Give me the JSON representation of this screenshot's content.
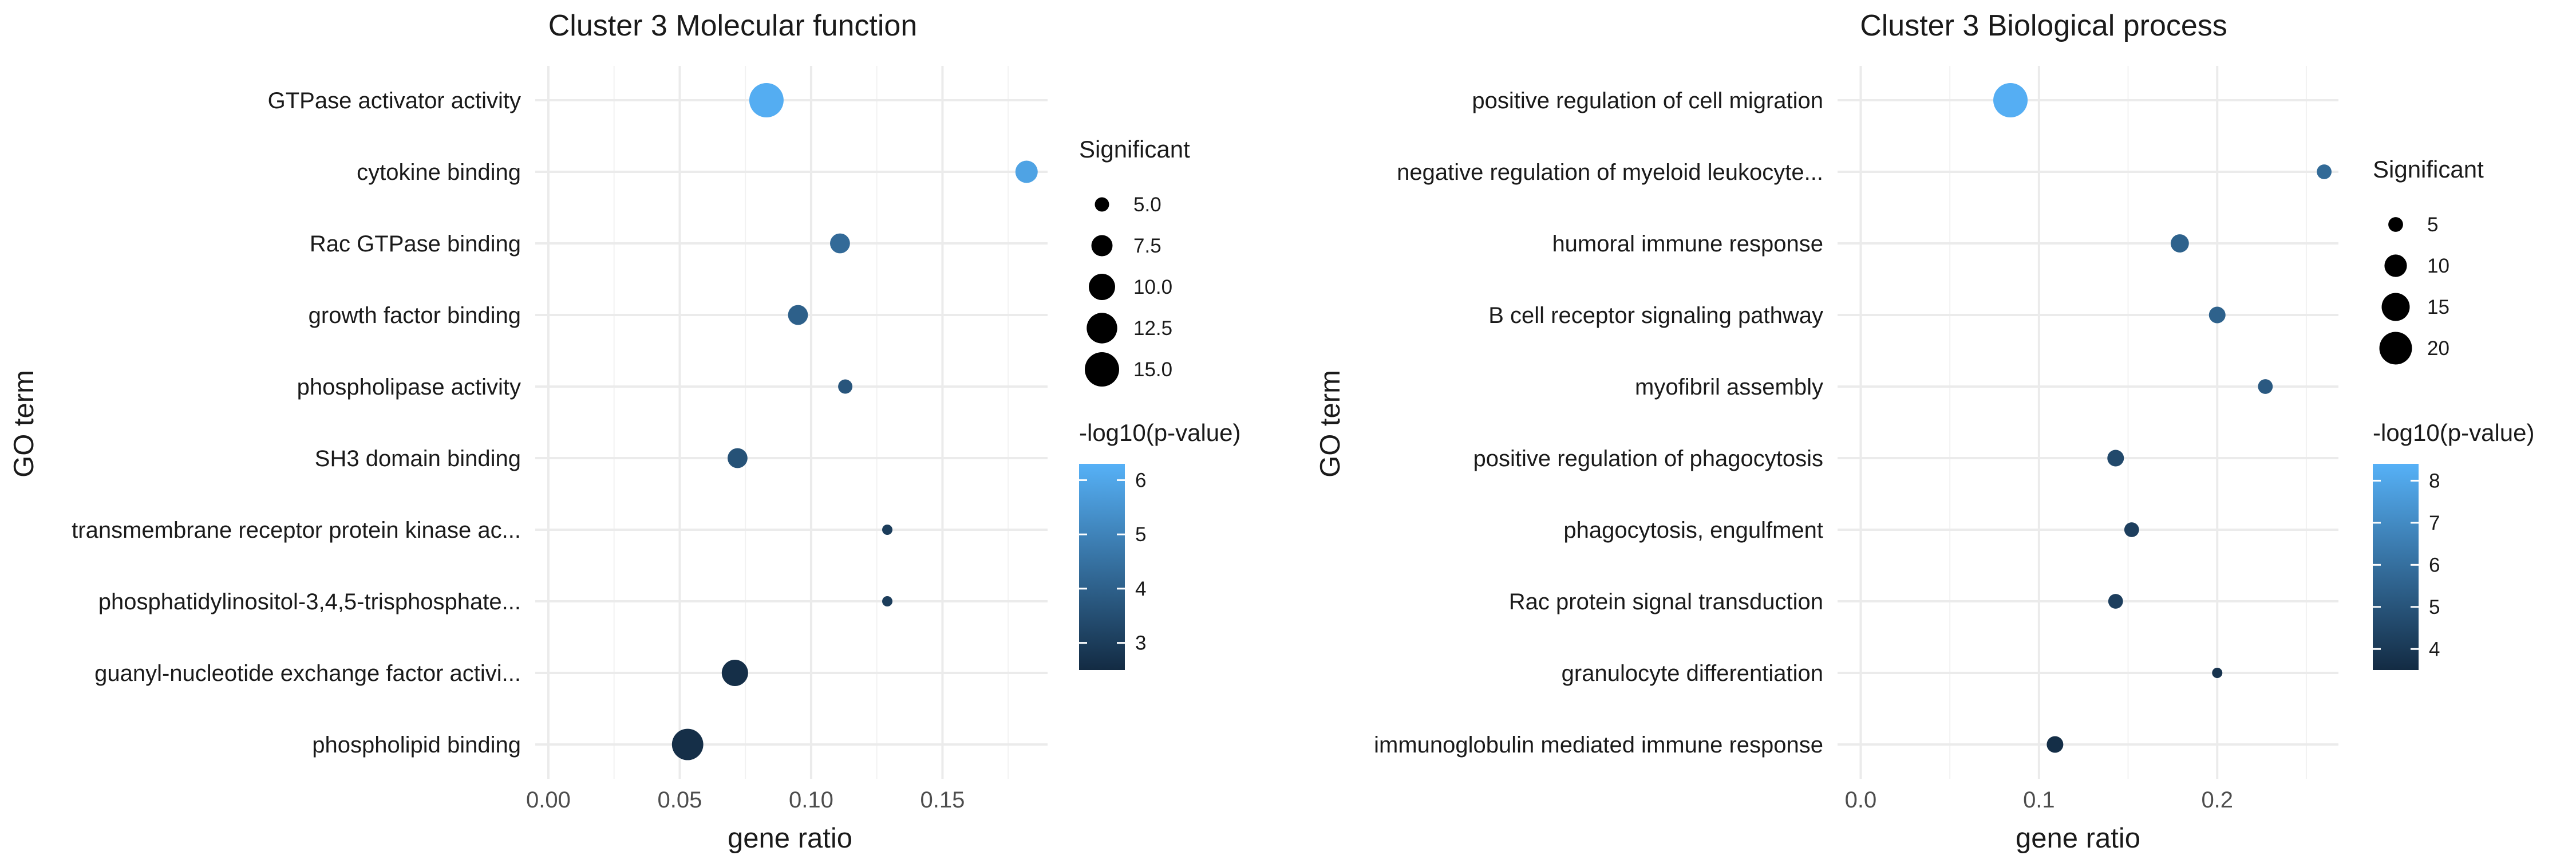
{
  "chart_data": [
    {
      "type": "scatter",
      "title": "Cluster 3 Molecular function",
      "xlabel": "gene ratio",
      "ylabel": "GO term",
      "xlim": [
        -0.005,
        0.19
      ],
      "x_ticks": [
        "0.00",
        "0.05",
        "0.10",
        "0.15"
      ],
      "x_tick_values": [
        0,
        0.05,
        0.1,
        0.15
      ],
      "grid": true,
      "categories": [
        "GTPase activator activity",
        "cytokine binding",
        "Rac GTPase binding",
        "growth factor binding",
        "phospholipase activity",
        "SH3 domain binding",
        "transmembrane receptor protein kinase ac...",
        "phosphatidylinositol-3,4,5-trisphosphate...",
        "guanyl-nucleotide exchange factor activi...",
        "phospholipid binding"
      ],
      "gene_ratio": [
        0.083,
        0.182,
        0.111,
        0.095,
        0.113,
        0.072,
        0.129,
        0.129,
        0.071,
        0.053
      ],
      "significant": [
        15,
        8,
        7,
        7,
        5,
        7,
        4,
        4,
        10,
        13
      ],
      "neg_log10_p": [
        6.2,
        5.9,
        4.3,
        4.0,
        3.7,
        3.6,
        3.0,
        3.0,
        2.6,
        2.6
      ],
      "size_legend": {
        "title": "Significant",
        "values": [
          5.0,
          7.5,
          10.0,
          12.5,
          15.0
        ],
        "labels": [
          "5.0",
          "7.5",
          "10.0",
          "12.5",
          "15.0"
        ],
        "range": [
          4,
          15
        ]
      },
      "color_legend": {
        "title": "-log10(p-value)",
        "ticks": [
          3,
          4,
          5,
          6
        ],
        "range": [
          2.5,
          6.3
        ],
        "low": "#132B43",
        "high": "#56B1F7"
      }
    },
    {
      "type": "scatter",
      "title": "Cluster 3 Biological process",
      "xlabel": "gene ratio",
      "ylabel": "GO term",
      "xlim": [
        -0.013,
        0.268
      ],
      "x_ticks": [
        "0.0",
        "0.1",
        "0.2"
      ],
      "x_tick_values": [
        0,
        0.1,
        0.2
      ],
      "grid": true,
      "categories": [
        "positive regulation of cell migration",
        "negative regulation of myeloid leukocyte...",
        "humoral immune response",
        "B cell receptor signaling pathway",
        "myofibril assembly",
        "positive regulation of phagocytosis",
        "phagocytosis, engulfment",
        "Rac protein signal transduction",
        "granulocyte differentiation",
        "immunoglobulin mediated immune response"
      ],
      "gene_ratio": [
        0.084,
        0.26,
        0.179,
        0.2,
        0.227,
        0.143,
        0.152,
        0.143,
        0.2,
        0.109
      ],
      "significant": [
        22,
        5,
        7,
        6,
        5,
        6,
        5,
        5,
        3,
        6
      ],
      "neg_log10_p": [
        8.3,
        5.8,
        5.5,
        5.5,
        5.2,
        4.6,
        4.2,
        4.2,
        3.8,
        3.6
      ],
      "size_legend": {
        "title": "Significant",
        "values": [
          5,
          10,
          15,
          20
        ],
        "labels": [
          "5",
          "10",
          "15",
          "20"
        ],
        "range": [
          3,
          22
        ]
      },
      "color_legend": {
        "title": "-log10(p-value)",
        "ticks": [
          4,
          5,
          6,
          7,
          8
        ],
        "range": [
          3.5,
          8.4
        ],
        "low": "#132B43",
        "high": "#56B1F7"
      }
    }
  ]
}
